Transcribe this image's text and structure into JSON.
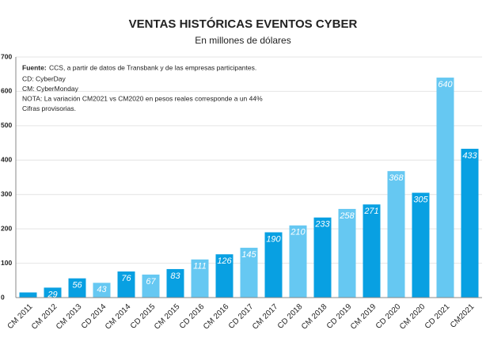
{
  "chart_data": {
    "type": "bar",
    "title": "VENTAS HISTÓRICAS EVENTOS CYBER",
    "subtitle": "En millones de dólares",
    "categories": [
      "CM 2011",
      "CM 2012",
      "CM 2013",
      "CD 2014",
      "CM 2014",
      "CD 2015",
      "CM 2015",
      "CD 2016",
      "CM 2016",
      "CD 2017",
      "CM 2017",
      "CD 2018",
      "CM 2018",
      "CD 2019",
      "CM 2019",
      "CD 2020",
      "CM 2020",
      "CD 2021",
      "CM2021"
    ],
    "values": [
      15,
      29,
      56,
      43,
      76,
      67,
      83,
      111,
      126,
      145,
      190,
      210,
      233,
      258,
      271,
      368,
      305,
      640,
      433
    ],
    "value_labels": [
      null,
      "29",
      "56",
      "43",
      "76",
      "67",
      "83",
      "111",
      "126",
      "145",
      "190",
      "210",
      "233",
      "258",
      "271",
      "368",
      "305",
      "640",
      "433"
    ],
    "colors": [
      "#08a0e2",
      "#08a0e2",
      "#08a0e2",
      "#66c8f2",
      "#08a0e2",
      "#66c8f2",
      "#08a0e2",
      "#66c8f2",
      "#08a0e2",
      "#66c8f2",
      "#08a0e2",
      "#66c8f2",
      "#08a0e2",
      "#66c8f2",
      "#08a0e2",
      "#66c8f2",
      "#08a0e2",
      "#66c8f2",
      "#08a0e2"
    ],
    "ylim": [
      0,
      700
    ],
    "yticks": [
      0,
      100,
      200,
      300,
      400,
      500,
      600,
      700
    ],
    "grid": true,
    "source_label": "Fuente:",
    "source": "CCS, a partir de datos de Transbank y de las empresas participantes.",
    "notes": [
      "CD: CyberDay",
      "CM: CyberMonday",
      "NOTA: La variación CM2021 vs CM2020 en pesos reales corresponde a un 44%",
      "Cifras provisorias."
    ]
  }
}
